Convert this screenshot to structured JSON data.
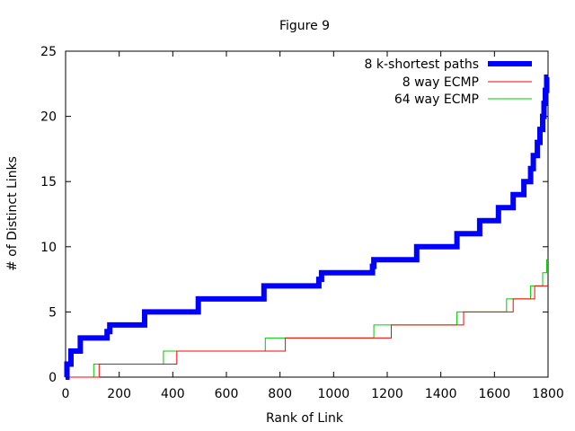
{
  "chart_data": {
    "type": "line",
    "title": "Figure 9",
    "xlabel": "Rank of Link",
    "ylabel": "# of Distinct Links",
    "xlim": [
      0,
      1800
    ],
    "ylim": [
      0,
      25
    ],
    "xticks": [
      0,
      200,
      400,
      600,
      800,
      1000,
      1200,
      1400,
      1600,
      1800
    ],
    "yticks": [
      0,
      5,
      10,
      15,
      20,
      25
    ],
    "grid": false,
    "legend_position": "top-right",
    "series": [
      {
        "name": "8 k-shortest paths",
        "color": "#0000ff",
        "step": true,
        "x": [
          0,
          5,
          20,
          55,
          155,
          165,
          295,
          495,
          740,
          945,
          955,
          1145,
          1150,
          1310,
          1460,
          1545,
          1615,
          1670,
          1710,
          1735,
          1745,
          1760,
          1770,
          1780,
          1785,
          1790,
          1795,
          1800
        ],
        "y": [
          0,
          1,
          2,
          3,
          3.5,
          4,
          5,
          6,
          7,
          7.5,
          8,
          8.5,
          9,
          10,
          11,
          12,
          13,
          14,
          15,
          16,
          17,
          18,
          19,
          20,
          21,
          22,
          23,
          23
        ]
      },
      {
        "name": "8 way ECMP",
        "color": "#ff0000",
        "step": true,
        "x": [
          0,
          125,
          415,
          820,
          1215,
          1485,
          1670,
          1750,
          1800
        ],
        "y": [
          0,
          1,
          2,
          3,
          4,
          5,
          6,
          7,
          7
        ]
      },
      {
        "name": "64 way ECMP",
        "color": "#00cc00",
        "step": true,
        "x": [
          0,
          105,
          365,
          745,
          1150,
          1460,
          1645,
          1735,
          1780,
          1795,
          1800
        ],
        "y": [
          0,
          1,
          2,
          3,
          4,
          5,
          6,
          7,
          8,
          9,
          9
        ]
      }
    ]
  }
}
